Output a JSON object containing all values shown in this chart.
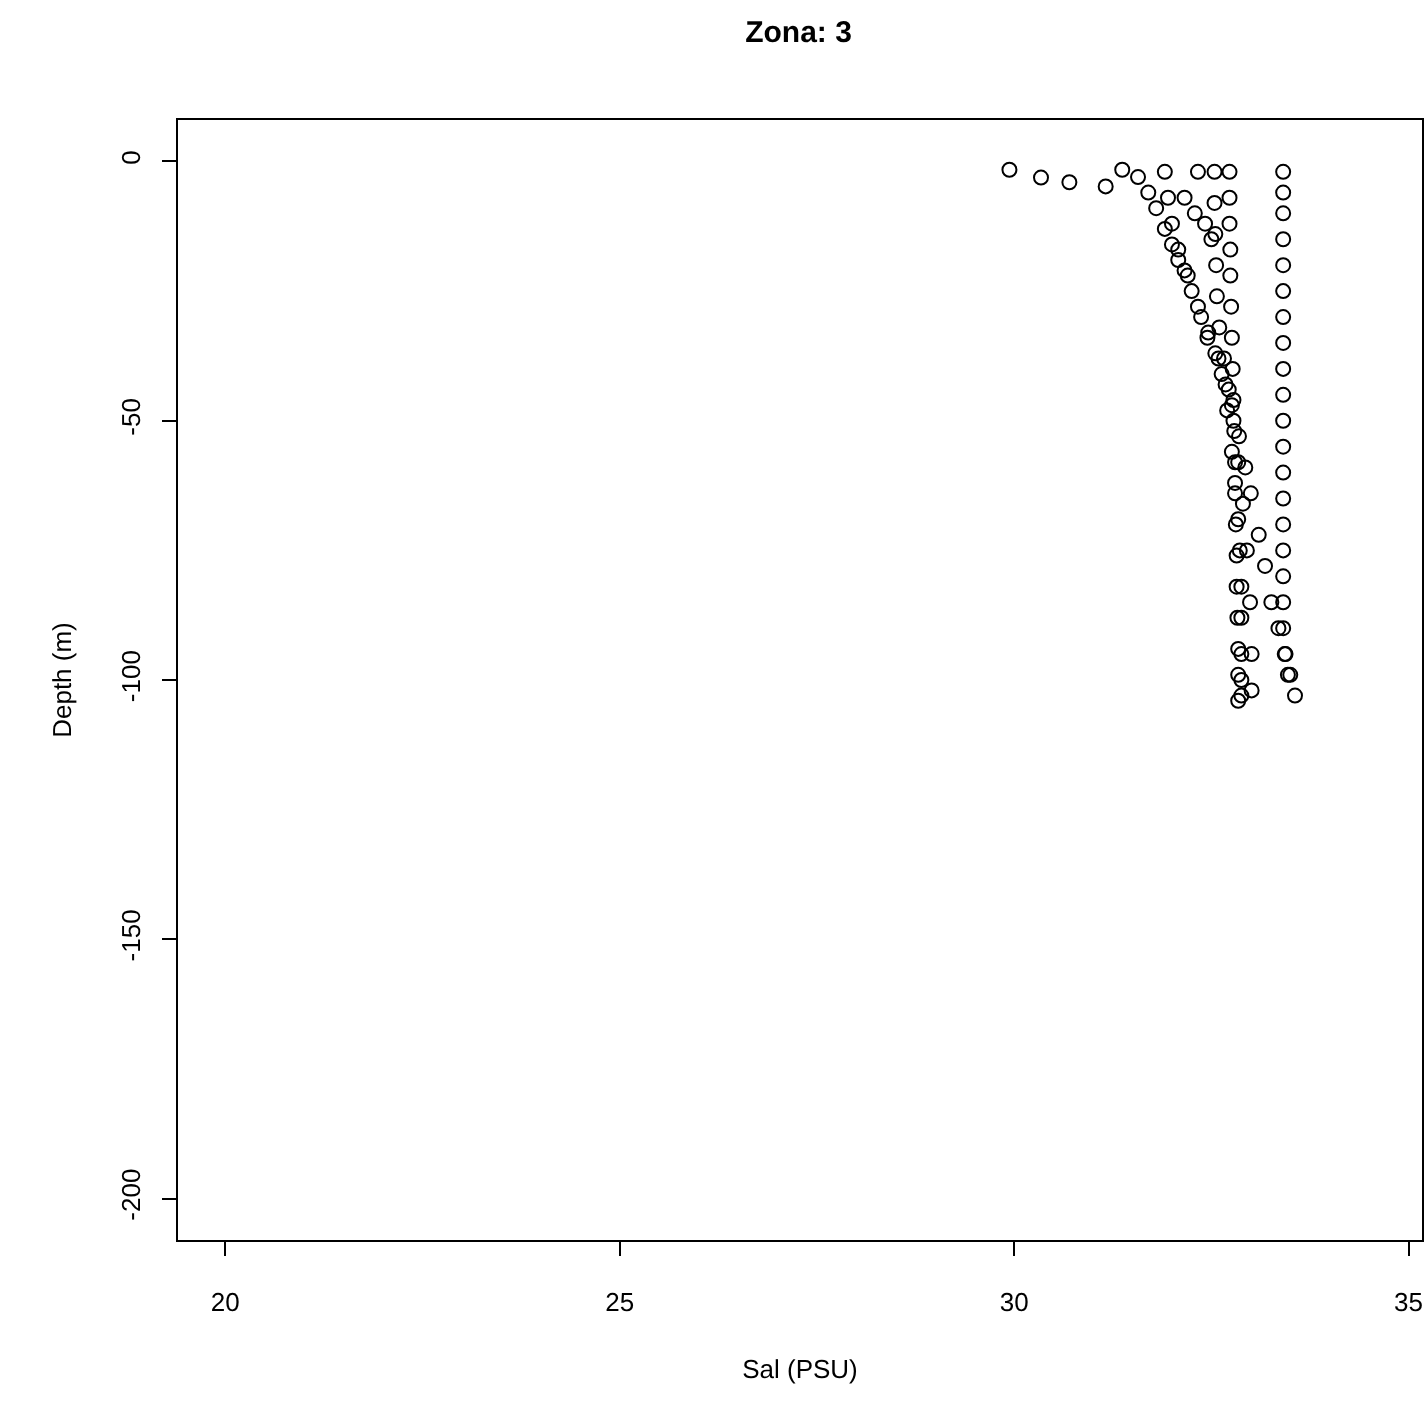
{
  "chart_data": {
    "type": "scatter",
    "title": "Zona: 3",
    "xlabel": "Sal (PSU)",
    "ylabel": "Depth (m)",
    "xlim": [
      19.4,
      35.17
    ],
    "xticks": [
      20,
      25,
      30,
      35
    ],
    "ylim": [
      -208,
      8
    ],
    "yticks": [
      0,
      -50,
      -100,
      -150,
      -200
    ],
    "grid": false,
    "marker": "circle",
    "series": [
      {
        "color": "#000000",
        "x": [
          29.94,
          30.34,
          30.7,
          31.16,
          31.37,
          33.41,
          33.41,
          33.41,
          33.41,
          33.41,
          33.41,
          33.41,
          33.41,
          33.41,
          33.41,
          33.41,
          33.41,
          33.41,
          33.41,
          33.41,
          33.41,
          33.41,
          33.41,
          33.41,
          33.44,
          33.47,
          31.57,
          31.7,
          31.8,
          31.91,
          32.0,
          32.08,
          32.16,
          32.25,
          32.37,
          32.45,
          32.55,
          32.63,
          32.7,
          32.76,
          32.8,
          32.84,
          32.86,
          32.88,
          32.88,
          32.88,
          32.88,
          32.88,
          31.91,
          31.95,
          32.0,
          32.08,
          32.2,
          32.33,
          32.46,
          32.59,
          32.68,
          32.76,
          32.85,
          32.93,
          33.0,
          33.1,
          33.18,
          33.26,
          33.35,
          33.43,
          33.5,
          33.56,
          32.73,
          32.73,
          32.73,
          32.74,
          32.74,
          32.75,
          32.76,
          32.77,
          32.78,
          32.79,
          32.8,
          32.8,
          32.81,
          32.82,
          32.82,
          32.83,
          32.84,
          32.84,
          32.84,
          32.54,
          32.54,
          32.55,
          32.56,
          32.57,
          32.6,
          32.66,
          32.72,
          32.78,
          32.84,
          32.9,
          32.95,
          32.99,
          33.01,
          33.01,
          32.33,
          32.16,
          32.29,
          32.42,
          32.5
        ],
        "values": [
          -1.6,
          -3.1,
          -4,
          -4.8,
          -1.6,
          -2,
          -6,
          -10,
          -15,
          -20,
          -25,
          -30,
          -35,
          -40,
          -45,
          -50,
          -55,
          -60,
          -65,
          -70,
          -75,
          -80,
          -85,
          -90,
          -95,
          -99,
          -3,
          -6,
          -9,
          -13,
          -16,
          -19,
          -21,
          -25,
          -30,
          -34,
          -37,
          -41,
          -48,
          -56,
          -62,
          -69,
          -75,
          -82,
          -88,
          -95,
          -100,
          -103,
          -2,
          -7,
          -12,
          -17,
          -22,
          -28,
          -33,
          -38,
          -43,
          -47,
          -53,
          -59,
          -64,
          -72,
          -78,
          -85,
          -90,
          -95,
          -99,
          -103,
          -2,
          -7,
          -12,
          -17,
          -22,
          -28,
          -34,
          -40,
          -46,
          -52,
          -58,
          -64,
          -70,
          -76,
          -82,
          -88,
          -94,
          -99,
          -104,
          -2,
          -8,
          -14,
          -20,
          -26,
          -32,
          -38,
          -44,
          -50,
          -58,
          -66,
          -75,
          -85,
          -95,
          -102,
          -2,
          -7,
          -10,
          -12,
          -15
        ]
      }
    ]
  }
}
